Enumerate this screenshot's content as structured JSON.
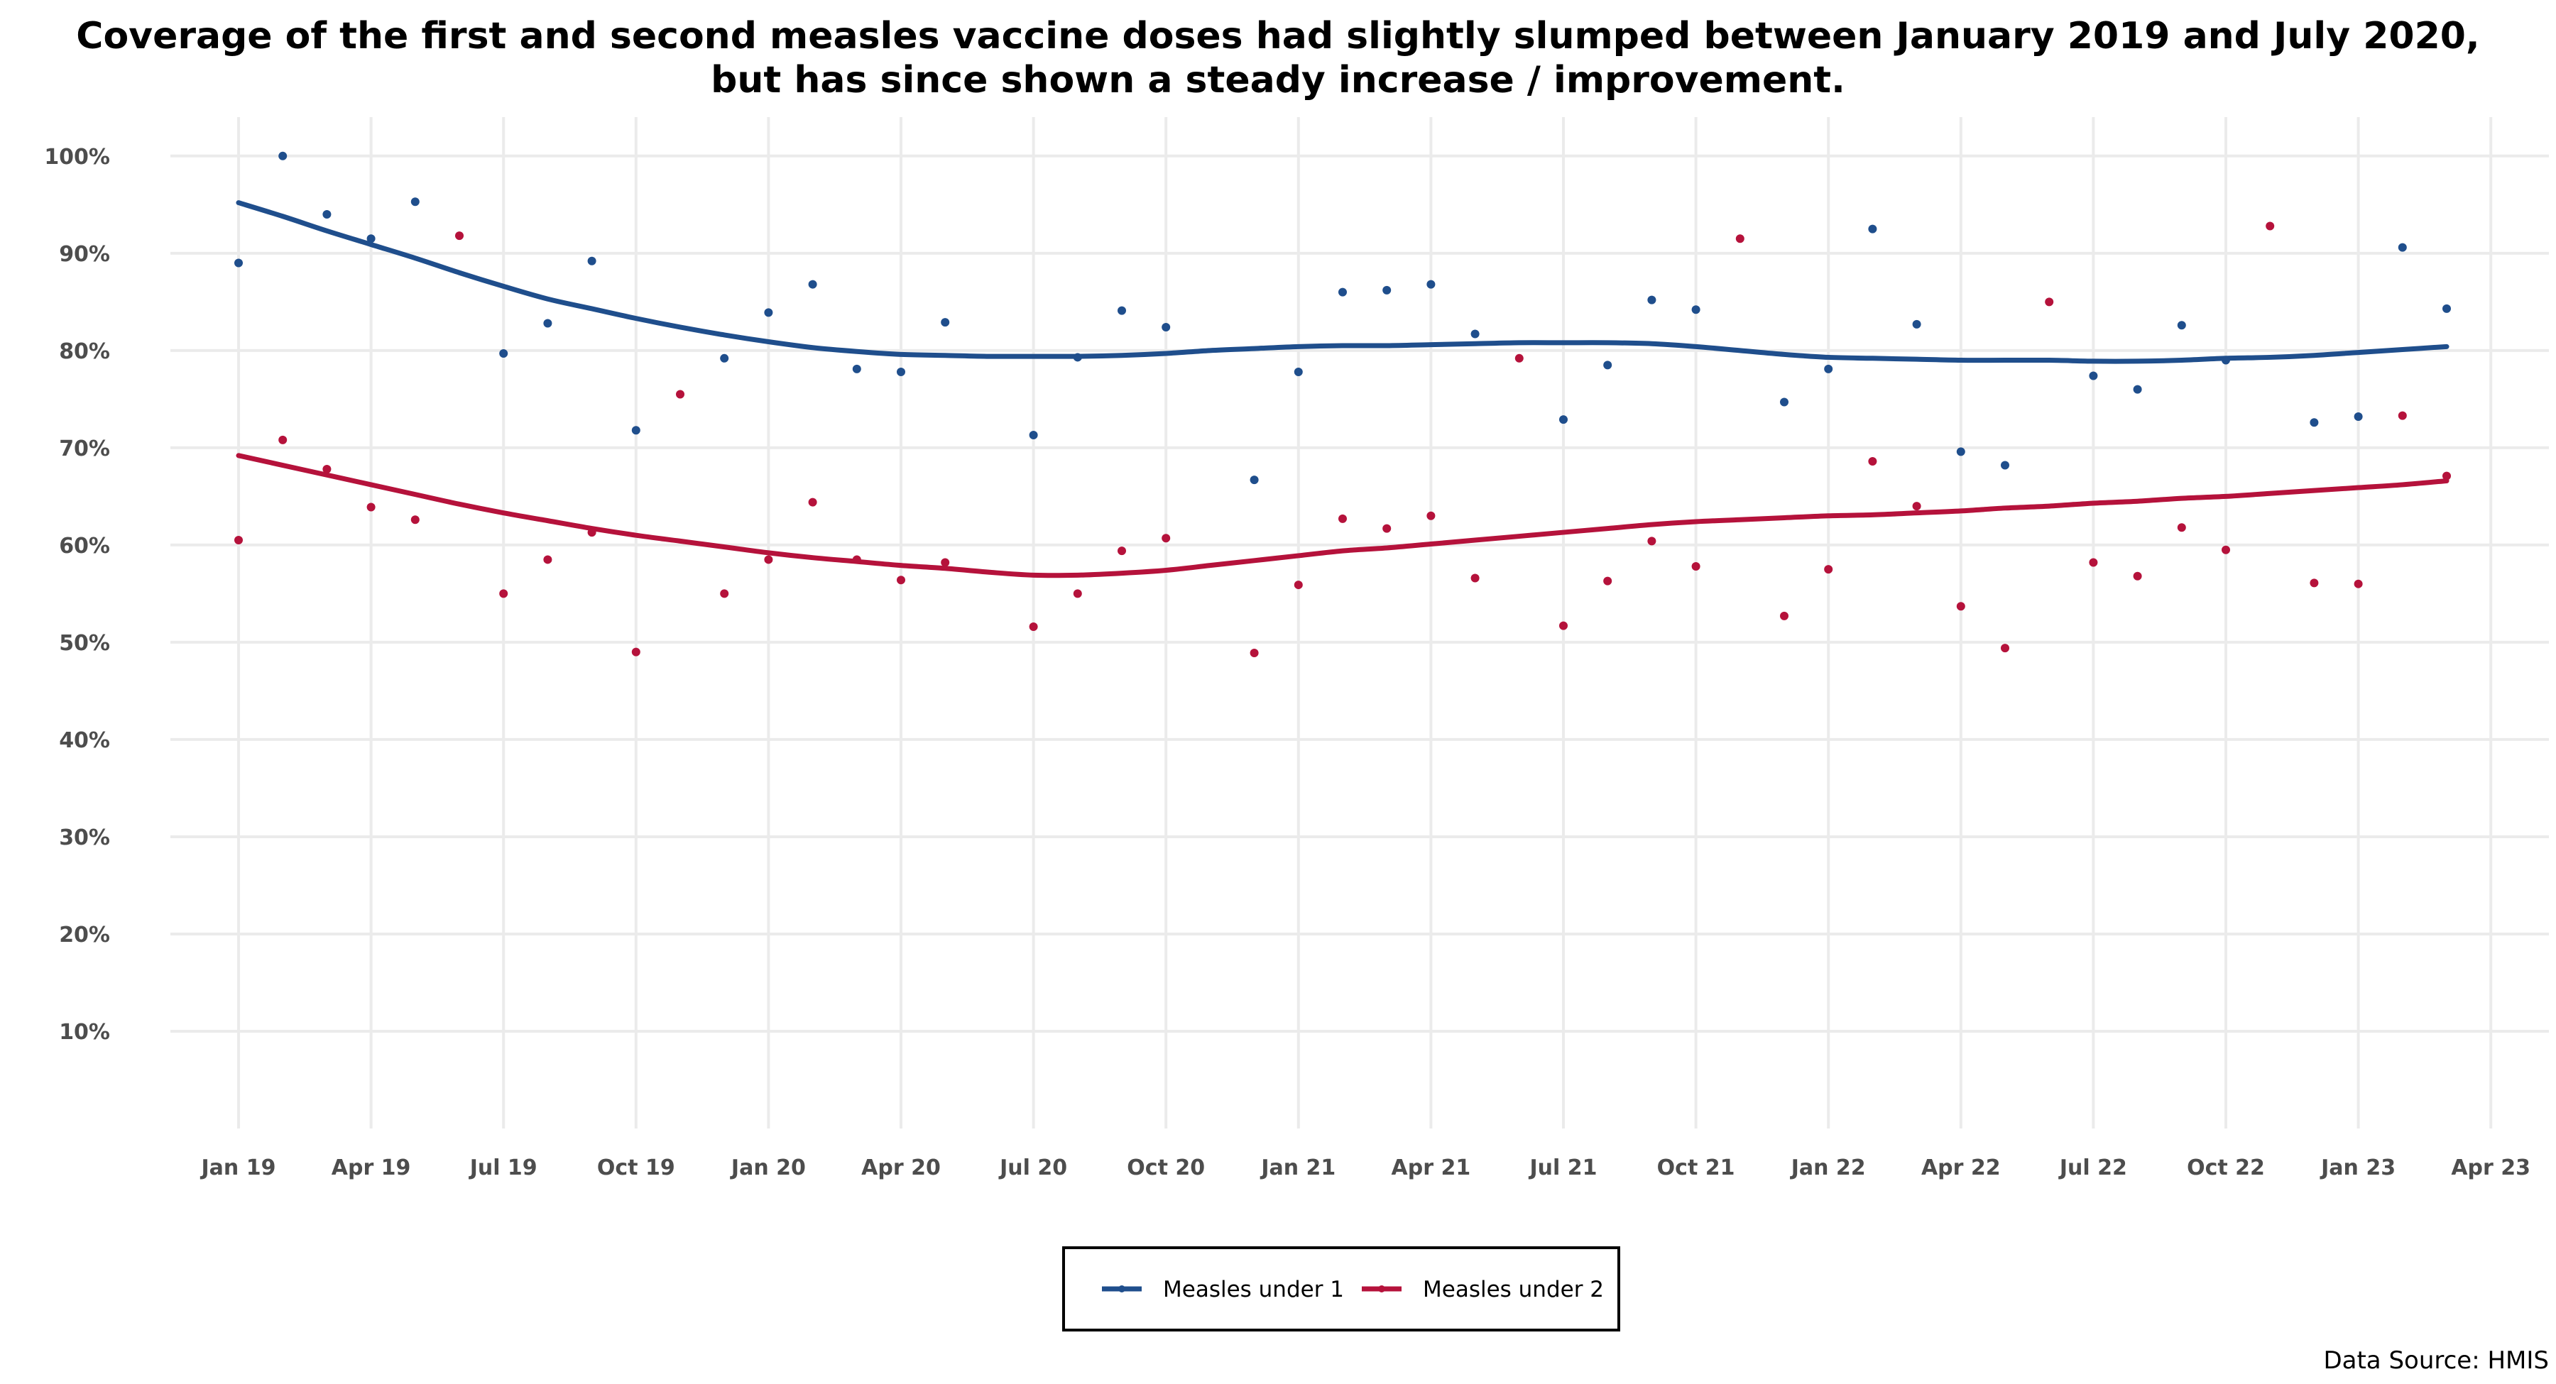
{
  "chart_data": {
    "type": "scatter",
    "title_lines": [
      "Coverage of the first and second measles vaccine doses had slightly slumped between January 2019 and July 2020,",
      "but has since shown a steady increase / improvement."
    ],
    "x": [
      "2019-01",
      "2019-02",
      "2019-03",
      "2019-04",
      "2019-05",
      "2019-06",
      "2019-07",
      "2019-08",
      "2019-09",
      "2019-10",
      "2019-11",
      "2019-12",
      "2020-01",
      "2020-02",
      "2020-03",
      "2020-04",
      "2020-05",
      "2020-06",
      "2020-07",
      "2020-08",
      "2020-09",
      "2020-10",
      "2020-11",
      "2020-12",
      "2021-01",
      "2021-02",
      "2021-03",
      "2021-04",
      "2021-05",
      "2021-06",
      "2021-07",
      "2021-08",
      "2021-09",
      "2021-10",
      "2021-11",
      "2021-12",
      "2022-01",
      "2022-02",
      "2022-03",
      "2022-04",
      "2022-05",
      "2022-06",
      "2022-07",
      "2022-08",
      "2022-09",
      "2022-10",
      "2022-11",
      "2022-12",
      "2023-01",
      "2023-02",
      "2023-03"
    ],
    "series": [
      {
        "name": "Measles under 1",
        "color": "#1f4e8c",
        "values": [
          89,
          100,
          94,
          91.5,
          95.3,
          null,
          79.7,
          82.8,
          89.2,
          71.8,
          null,
          79.2,
          83.9,
          86.8,
          78.1,
          77.8,
          82.9,
          null,
          71.3,
          79.3,
          84.1,
          82.4,
          null,
          66.7,
          77.8,
          86,
          86.2,
          86.8,
          81.7,
          null,
          72.9,
          78.5,
          85.2,
          84.2,
          null,
          74.7,
          78.1,
          92.5,
          82.7,
          69.6,
          68.2,
          null,
          77.4,
          76,
          82.6,
          79,
          null,
          72.6,
          73.2,
          90.6,
          84.3
        ],
        "trend": [
          95.2,
          93.8,
          92.3,
          90.9,
          89.5,
          88.0,
          86.6,
          85.3,
          84.3,
          83.3,
          82.4,
          81.6,
          80.9,
          80.3,
          79.9,
          79.6,
          79.5,
          79.4,
          79.4,
          79.4,
          79.5,
          79.7,
          80.0,
          80.2,
          80.4,
          80.5,
          80.5,
          80.6,
          80.7,
          80.8,
          80.8,
          80.8,
          80.7,
          80.4,
          80.0,
          79.6,
          79.3,
          79.2,
          79.1,
          79.0,
          79.0,
          79.0,
          78.9,
          78.9,
          79.0,
          79.2,
          79.3,
          79.5,
          79.8,
          80.1,
          80.4
        ]
      },
      {
        "name": "Measles under 2",
        "color": "#b5123b",
        "values": [
          60.5,
          70.8,
          67.8,
          63.9,
          62.6,
          91.8,
          55,
          58.5,
          61.3,
          49,
          75.5,
          55,
          58.5,
          64.4,
          58.5,
          56.4,
          58.2,
          null,
          51.6,
          55,
          59.4,
          60.7,
          null,
          48.9,
          55.9,
          62.7,
          61.7,
          63,
          56.6,
          79.2,
          51.7,
          56.3,
          60.4,
          57.8,
          91.5,
          52.7,
          57.5,
          68.6,
          64,
          53.7,
          49.4,
          85,
          58.2,
          56.8,
          61.8,
          59.5,
          92.8,
          56.1,
          56,
          73.3,
          67.1
        ],
        "trend": [
          69.2,
          68.2,
          67.2,
          66.2,
          65.2,
          64.2,
          63.3,
          62.5,
          61.7,
          61.0,
          60.4,
          59.8,
          59.2,
          58.7,
          58.3,
          57.9,
          57.6,
          57.2,
          56.9,
          56.9,
          57.1,
          57.4,
          57.9,
          58.4,
          58.9,
          59.4,
          59.7,
          60.1,
          60.5,
          60.9,
          61.3,
          61.7,
          62.1,
          62.4,
          62.6,
          62.8,
          63.0,
          63.1,
          63.3,
          63.5,
          63.8,
          64.0,
          64.3,
          64.5,
          64.8,
          65.0,
          65.3,
          65.6,
          65.9,
          66.2,
          66.6
        ]
      }
    ],
    "y_tick_labels": [
      "10%",
      "20%",
      "30%",
      "40%",
      "50%",
      "60%",
      "70%",
      "80%",
      "90%",
      "100%"
    ],
    "y_ticks": [
      10,
      20,
      30,
      40,
      50,
      60,
      70,
      80,
      90,
      100
    ],
    "x_tick_labels": [
      "Jan 19",
      "Apr 19",
      "Jul 19",
      "Oct 19",
      "Jan 20",
      "Apr 20",
      "Jul 20",
      "Oct 20",
      "Jan 21",
      "Apr 21",
      "Jul 21",
      "Oct 21",
      "Jan 22",
      "Apr 22",
      "Jul 22",
      "Oct 22",
      "Jan 23",
      "Apr 23"
    ],
    "x_ticks": [
      "2019-01",
      "2019-04",
      "2019-07",
      "2019-10",
      "2020-01",
      "2020-04",
      "2020-07",
      "2020-10",
      "2021-01",
      "2021-04",
      "2021-07",
      "2021-10",
      "2022-01",
      "2022-04",
      "2022-07",
      "2022-10",
      "2023-01",
      "2023-04"
    ],
    "ylim": [
      0,
      104
    ],
    "grid": true,
    "legend_position": "bottom",
    "source": "Data Source: HMIS"
  }
}
